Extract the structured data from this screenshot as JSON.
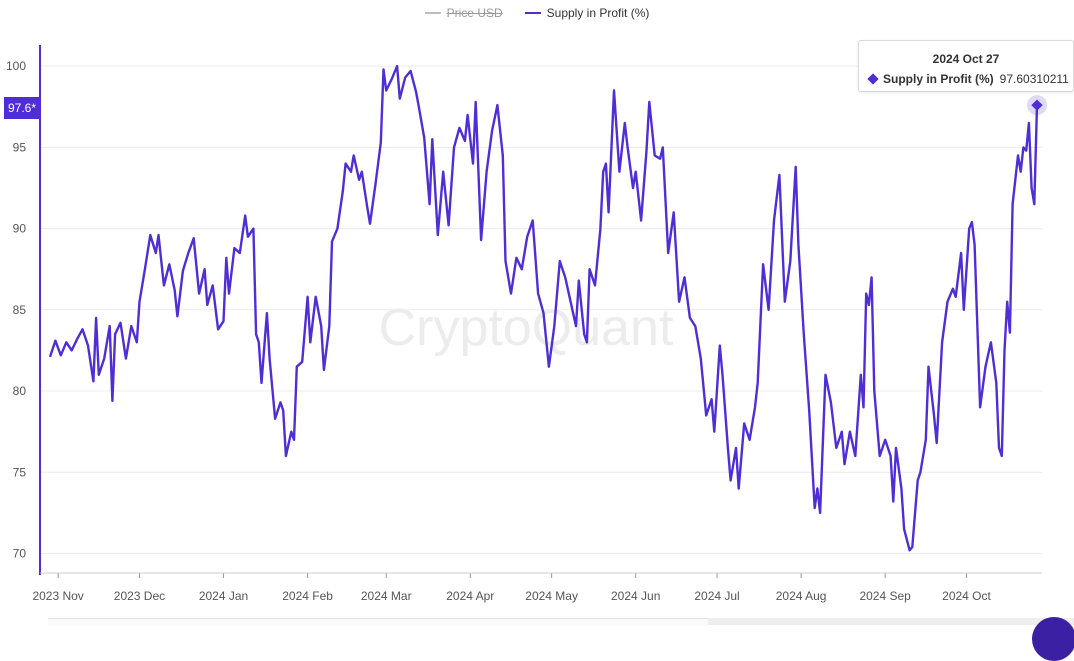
{
  "legend": [
    {
      "name": "Price USD",
      "color": "#bdbdbd",
      "hidden": true
    },
    {
      "name": "Supply in Profit (%)",
      "color": "#4f2ed6",
      "hidden": false
    }
  ],
  "watermark": "CryptoQuant",
  "current_value_label": "97.6*",
  "tooltip": {
    "date": "2024 Oct 27",
    "series_name": "Supply in Profit (%)",
    "value": "97.60310211",
    "icon": "diamond-icon"
  },
  "colors": {
    "line": "#4f2ed6",
    "grid": "#ececec",
    "axis": "#4f2ed6",
    "text": "#555555"
  },
  "chart_data": {
    "type": "line",
    "x_labels": [
      "2023 Nov",
      "2023 Dec",
      "2024 Jan",
      "2024 Feb",
      "2024 Mar",
      "2024 Apr",
      "2024 May",
      "2024 Jun",
      "2024 Jul",
      "2024 Aug",
      "2024 Sep",
      "2024 Oct"
    ],
    "y_ticks": [
      70,
      75,
      80,
      85,
      90,
      95,
      100
    ],
    "ylim": [
      68.8,
      101.3
    ],
    "x_range": [
      "2023-10-29",
      "2024-10-27"
    ],
    "grid": true,
    "legend_position": "top",
    "series": [
      {
        "name": "Supply in Profit (%)",
        "color": "#4f2ed6",
        "points": [
          [
            "2023-10-29",
            82.1
          ],
          [
            "2023-10-31",
            83.1
          ],
          [
            "2023-11-02",
            82.2
          ],
          [
            "2023-11-04",
            83.0
          ],
          [
            "2023-11-06",
            82.5
          ],
          [
            "2023-11-08",
            83.2
          ],
          [
            "2023-11-10",
            83.8
          ],
          [
            "2023-11-12",
            82.8
          ],
          [
            "2023-11-14",
            80.6
          ],
          [
            "2023-11-15",
            84.5
          ],
          [
            "2023-11-16",
            81.0
          ],
          [
            "2023-11-18",
            82.0
          ],
          [
            "2023-11-20",
            84.0
          ],
          [
            "2023-11-21",
            79.4
          ],
          [
            "2023-11-22",
            83.5
          ],
          [
            "2023-11-24",
            84.2
          ],
          [
            "2023-11-26",
            82.0
          ],
          [
            "2023-11-28",
            84.0
          ],
          [
            "2023-11-30",
            83.0
          ],
          [
            "2023-12-01",
            85.5
          ],
          [
            "2023-12-03",
            87.5
          ],
          [
            "2023-12-05",
            89.6
          ],
          [
            "2023-12-07",
            88.5
          ],
          [
            "2023-12-08",
            89.6
          ],
          [
            "2023-12-10",
            86.5
          ],
          [
            "2023-12-12",
            87.8
          ],
          [
            "2023-12-14",
            86.2
          ],
          [
            "2023-12-15",
            84.6
          ],
          [
            "2023-12-17",
            87.4
          ],
          [
            "2023-12-19",
            88.5
          ],
          [
            "2023-12-21",
            89.4
          ],
          [
            "2023-12-23",
            86.0
          ],
          [
            "2023-12-25",
            87.5
          ],
          [
            "2023-12-26",
            85.3
          ],
          [
            "2023-12-28",
            86.5
          ],
          [
            "2023-12-30",
            83.8
          ],
          [
            "2024-01-01",
            84.3
          ],
          [
            "2024-01-02",
            88.2
          ],
          [
            "2024-01-03",
            86.0
          ],
          [
            "2024-01-05",
            88.8
          ],
          [
            "2024-01-07",
            88.5
          ],
          [
            "2024-01-09",
            90.8
          ],
          [
            "2024-01-10",
            89.5
          ],
          [
            "2024-01-12",
            90.0
          ],
          [
            "2024-01-13",
            83.5
          ],
          [
            "2024-01-14",
            83.0
          ],
          [
            "2024-01-15",
            80.5
          ],
          [
            "2024-01-17",
            84.8
          ],
          [
            "2024-01-18",
            82.0
          ],
          [
            "2024-01-20",
            78.3
          ],
          [
            "2024-01-22",
            79.3
          ],
          [
            "2024-01-23",
            78.8
          ],
          [
            "2024-01-24",
            76.0
          ],
          [
            "2024-01-26",
            77.5
          ],
          [
            "2024-01-27",
            77.0
          ],
          [
            "2024-01-28",
            81.5
          ],
          [
            "2024-01-30",
            81.8
          ],
          [
            "2024-02-01",
            85.8
          ],
          [
            "2024-02-02",
            83.0
          ],
          [
            "2024-02-04",
            85.8
          ],
          [
            "2024-02-06",
            84.0
          ],
          [
            "2024-02-07",
            81.3
          ],
          [
            "2024-02-09",
            84.0
          ],
          [
            "2024-02-10",
            89.2
          ],
          [
            "2024-02-12",
            90.0
          ],
          [
            "2024-02-14",
            92.3
          ],
          [
            "2024-02-15",
            94.0
          ],
          [
            "2024-02-17",
            93.5
          ],
          [
            "2024-02-18",
            94.5
          ],
          [
            "2024-02-20",
            93.0
          ],
          [
            "2024-02-21",
            93.5
          ],
          [
            "2024-02-23",
            91.3
          ],
          [
            "2024-02-24",
            90.3
          ],
          [
            "2024-02-26",
            92.7
          ],
          [
            "2024-02-28",
            95.3
          ],
          [
            "2024-02-29",
            99.8
          ],
          [
            "2024-03-01",
            98.5
          ],
          [
            "2024-03-03",
            99.2
          ],
          [
            "2024-03-05",
            100.0
          ],
          [
            "2024-03-06",
            98.0
          ],
          [
            "2024-03-08",
            99.3
          ],
          [
            "2024-03-10",
            99.7
          ],
          [
            "2024-03-12",
            98.4
          ],
          [
            "2024-03-13",
            97.5
          ],
          [
            "2024-03-15",
            95.6
          ],
          [
            "2024-03-17",
            91.5
          ],
          [
            "2024-03-18",
            95.5
          ],
          [
            "2024-03-20",
            89.6
          ],
          [
            "2024-03-22",
            93.5
          ],
          [
            "2024-03-24",
            90.2
          ],
          [
            "2024-03-26",
            95.0
          ],
          [
            "2024-03-28",
            96.2
          ],
          [
            "2024-03-30",
            95.4
          ],
          [
            "2024-03-31",
            97.0
          ],
          [
            "2024-04-02",
            94.0
          ],
          [
            "2024-04-03",
            97.8
          ],
          [
            "2024-04-05",
            89.3
          ],
          [
            "2024-04-07",
            93.5
          ],
          [
            "2024-04-09",
            96.0
          ],
          [
            "2024-04-11",
            97.6
          ],
          [
            "2024-04-13",
            94.5
          ],
          [
            "2024-04-14",
            88.0
          ],
          [
            "2024-04-16",
            86.0
          ],
          [
            "2024-04-18",
            88.2
          ],
          [
            "2024-04-20",
            87.5
          ],
          [
            "2024-04-22",
            89.5
          ],
          [
            "2024-04-24",
            90.5
          ],
          [
            "2024-04-26",
            86.0
          ],
          [
            "2024-04-28",
            84.8
          ],
          [
            "2024-04-30",
            81.5
          ],
          [
            "2024-05-02",
            84.0
          ],
          [
            "2024-05-04",
            88.0
          ],
          [
            "2024-05-06",
            87.0
          ],
          [
            "2024-05-08",
            85.5
          ],
          [
            "2024-05-10",
            84.0
          ],
          [
            "2024-05-11",
            86.8
          ],
          [
            "2024-05-13",
            83.5
          ],
          [
            "2024-05-14",
            83.0
          ],
          [
            "2024-05-15",
            87.5
          ],
          [
            "2024-05-17",
            86.5
          ],
          [
            "2024-05-19",
            90.0
          ],
          [
            "2024-05-20",
            93.5
          ],
          [
            "2024-05-21",
            94.0
          ],
          [
            "2024-05-22",
            91.0
          ],
          [
            "2024-05-24",
            98.5
          ],
          [
            "2024-05-26",
            93.5
          ],
          [
            "2024-05-28",
            96.5
          ],
          [
            "2024-05-29",
            95.0
          ],
          [
            "2024-05-31",
            92.5
          ],
          [
            "2024-06-01",
            93.5
          ],
          [
            "2024-06-03",
            90.5
          ],
          [
            "2024-06-05",
            94.8
          ],
          [
            "2024-06-06",
            97.8
          ],
          [
            "2024-06-08",
            94.5
          ],
          [
            "2024-06-10",
            94.3
          ],
          [
            "2024-06-11",
            95.0
          ],
          [
            "2024-06-13",
            88.5
          ],
          [
            "2024-06-15",
            91.0
          ],
          [
            "2024-06-17",
            85.5
          ],
          [
            "2024-06-19",
            87.0
          ],
          [
            "2024-06-21",
            84.5
          ],
          [
            "2024-06-23",
            84.0
          ],
          [
            "2024-06-25",
            82.0
          ],
          [
            "2024-06-27",
            78.5
          ],
          [
            "2024-06-29",
            79.5
          ],
          [
            "2024-06-30",
            77.5
          ],
          [
            "2024-07-02",
            82.8
          ],
          [
            "2024-07-03",
            81.0
          ],
          [
            "2024-07-05",
            76.5
          ],
          [
            "2024-07-06",
            74.5
          ],
          [
            "2024-07-08",
            76.5
          ],
          [
            "2024-07-09",
            74.0
          ],
          [
            "2024-07-11",
            78.0
          ],
          [
            "2024-07-13",
            77.0
          ],
          [
            "2024-07-15",
            79.0
          ],
          [
            "2024-07-16",
            80.5
          ],
          [
            "2024-07-18",
            87.8
          ],
          [
            "2024-07-20",
            85.0
          ],
          [
            "2024-07-22",
            90.5
          ],
          [
            "2024-07-24",
            93.3
          ],
          [
            "2024-07-26",
            85.5
          ],
          [
            "2024-07-28",
            88.0
          ],
          [
            "2024-07-30",
            93.8
          ],
          [
            "2024-07-31",
            89.0
          ],
          [
            "2024-08-02",
            83.5
          ],
          [
            "2024-08-04",
            78.8
          ],
          [
            "2024-08-06",
            72.8
          ],
          [
            "2024-08-07",
            74.0
          ],
          [
            "2024-08-08",
            72.5
          ],
          [
            "2024-08-10",
            81.0
          ],
          [
            "2024-08-12",
            79.3
          ],
          [
            "2024-08-14",
            76.5
          ],
          [
            "2024-08-16",
            77.5
          ],
          [
            "2024-08-17",
            75.5
          ],
          [
            "2024-08-19",
            77.5
          ],
          [
            "2024-08-21",
            76.0
          ],
          [
            "2024-08-23",
            81.0
          ],
          [
            "2024-08-24",
            79.0
          ],
          [
            "2024-08-25",
            86.0
          ],
          [
            "2024-08-26",
            85.3
          ],
          [
            "2024-08-27",
            87.0
          ],
          [
            "2024-08-28",
            80.0
          ],
          [
            "2024-08-30",
            76.0
          ],
          [
            "2024-09-01",
            77.0
          ],
          [
            "2024-09-03",
            76.0
          ],
          [
            "2024-09-04",
            73.2
          ],
          [
            "2024-09-05",
            76.5
          ],
          [
            "2024-09-07",
            74.0
          ],
          [
            "2024-09-08",
            71.5
          ],
          [
            "2024-09-10",
            70.2
          ],
          [
            "2024-09-11",
            70.4
          ],
          [
            "2024-09-13",
            74.5
          ],
          [
            "2024-09-14",
            75.0
          ],
          [
            "2024-09-16",
            77.0
          ],
          [
            "2024-09-17",
            81.5
          ],
          [
            "2024-09-19",
            78.5
          ],
          [
            "2024-09-20",
            76.8
          ],
          [
            "2024-09-22",
            83.0
          ],
          [
            "2024-09-24",
            85.5
          ],
          [
            "2024-09-26",
            86.3
          ],
          [
            "2024-09-27",
            85.8
          ],
          [
            "2024-09-29",
            88.5
          ],
          [
            "2024-09-30",
            85.0
          ],
          [
            "2024-10-02",
            90.0
          ],
          [
            "2024-10-03",
            90.4
          ],
          [
            "2024-10-04",
            89.0
          ],
          [
            "2024-10-06",
            79.0
          ],
          [
            "2024-10-08",
            81.5
          ],
          [
            "2024-10-10",
            83.0
          ],
          [
            "2024-10-12",
            80.5
          ],
          [
            "2024-10-13",
            76.5
          ],
          [
            "2024-10-14",
            76.0
          ],
          [
            "2024-10-15",
            82.5
          ],
          [
            "2024-10-16",
            85.5
          ],
          [
            "2024-10-17",
            83.6
          ],
          [
            "2024-10-18",
            91.5
          ],
          [
            "2024-10-20",
            94.5
          ],
          [
            "2024-10-21",
            93.5
          ],
          [
            "2024-10-22",
            95.0
          ],
          [
            "2024-10-23",
            94.8
          ],
          [
            "2024-10-24",
            96.5
          ],
          [
            "2024-10-25",
            92.5
          ],
          [
            "2024-10-26",
            91.5
          ],
          [
            "2024-10-27",
            97.6
          ]
        ]
      }
    ]
  }
}
